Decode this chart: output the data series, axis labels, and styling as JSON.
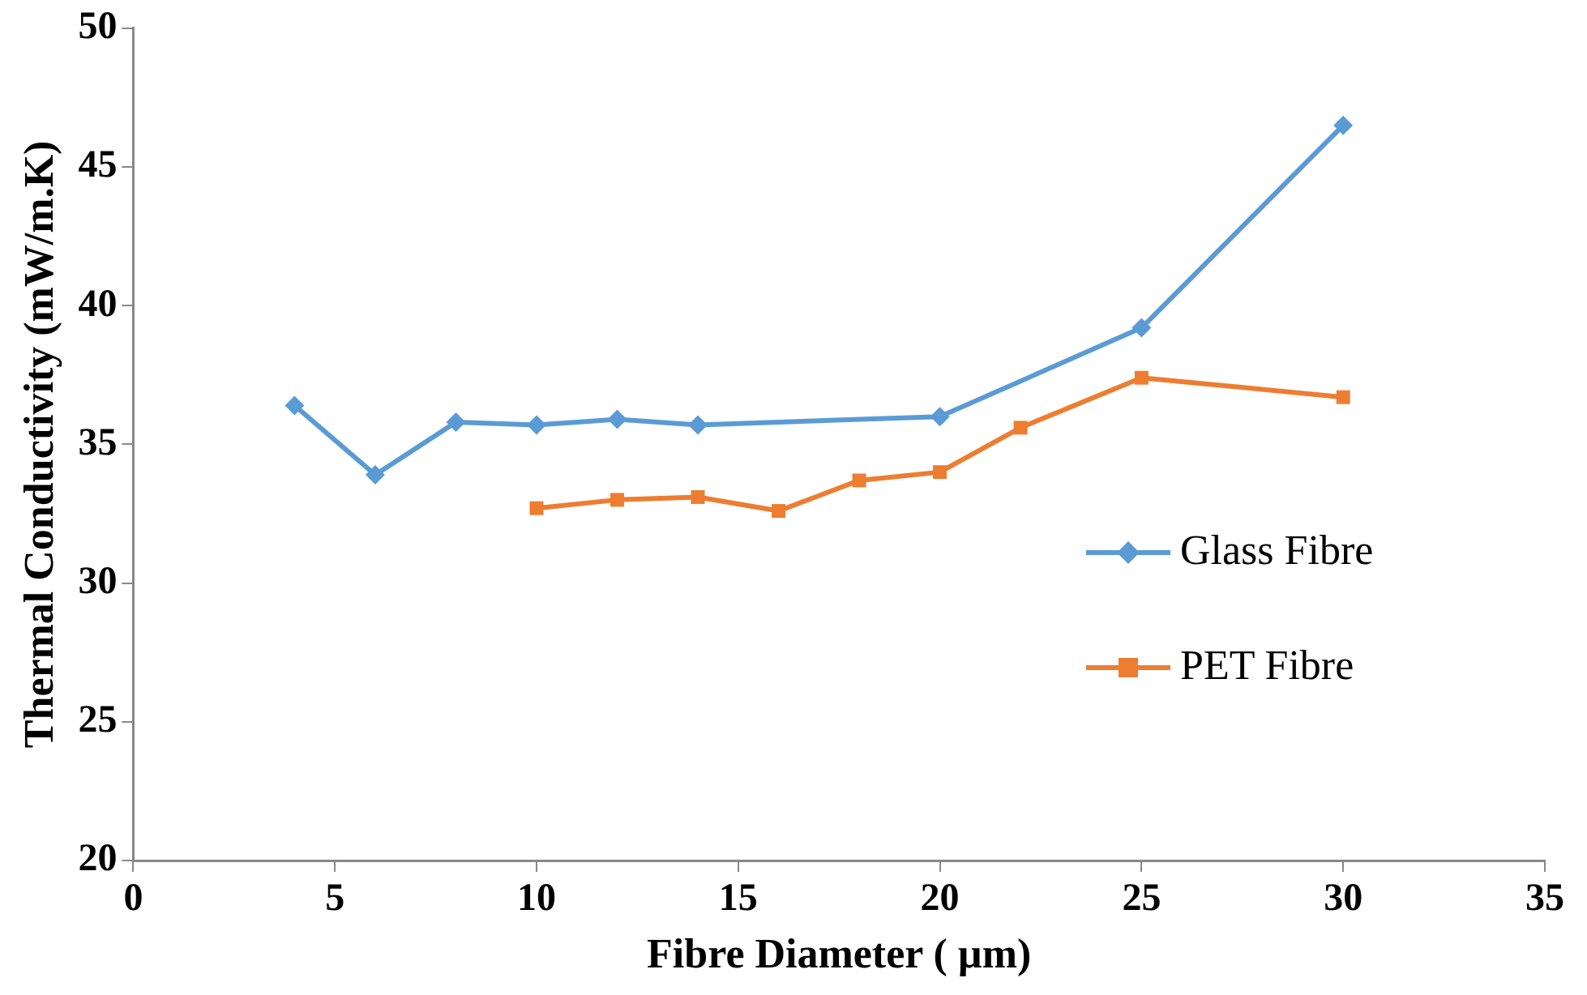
{
  "chart_data": {
    "type": "line",
    "xlabel": "Fibre Diameter ( µm)",
    "ylabel": "Thermal Conductivity (mW/m.K)",
    "xlim": [
      0,
      35
    ],
    "xticks": [
      0,
      5,
      10,
      15,
      20,
      25,
      30,
      35
    ],
    "ylim": [
      20,
      50
    ],
    "yticks": [
      20,
      25,
      30,
      35,
      40,
      45,
      50
    ],
    "grid": false,
    "legend": "right",
    "series": [
      {
        "name": "Glass Fibre",
        "color": "#5b9bd5",
        "marker": "diamond",
        "x": [
          4,
          6,
          8,
          10,
          12,
          14,
          20,
          25,
          30
        ],
        "values": [
          36.4,
          33.9,
          35.8,
          35.7,
          35.9,
          35.7,
          36.0,
          39.2,
          46.5
        ]
      },
      {
        "name": "PET Fibre",
        "color": "#ed7d31",
        "marker": "square",
        "x": [
          10,
          12,
          14,
          16,
          18,
          20,
          22,
          25,
          30
        ],
        "values": [
          32.7,
          33.0,
          33.1,
          32.6,
          33.7,
          34.0,
          35.6,
          37.4,
          36.7
        ]
      }
    ]
  }
}
